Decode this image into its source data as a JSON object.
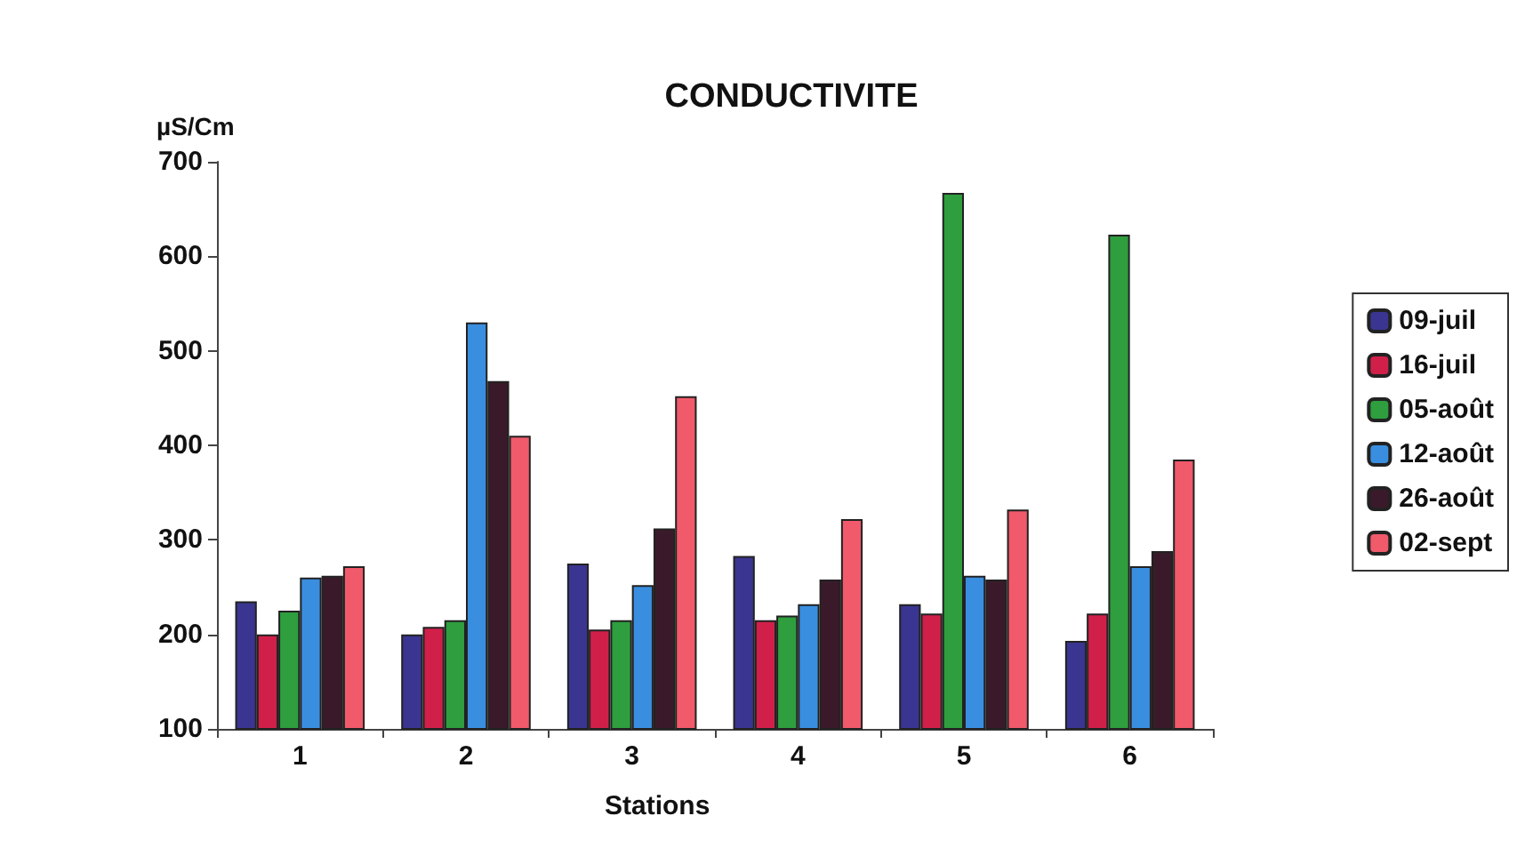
{
  "chart_data": {
    "type": "bar",
    "title": "CONDUCTIVITE",
    "ylabel": "µS/Cm",
    "xlabel": "Stations",
    "categories": [
      "1",
      "2",
      "3",
      "4",
      "5",
      "6"
    ],
    "series": [
      {
        "name": "09-juil",
        "color": "#3a3590",
        "values": [
          235,
          200,
          275,
          283,
          232,
          193
        ]
      },
      {
        "name": "16-juil",
        "color": "#d0204a",
        "values": [
          200,
          208,
          205,
          215,
          222,
          222
        ]
      },
      {
        "name": "05-août",
        "color": "#2e9e3e",
        "values": [
          225,
          215,
          215,
          220,
          667,
          623
        ]
      },
      {
        "name": "12-août",
        "color": "#3a8ee0",
        "values": [
          260,
          530,
          252,
          232,
          262,
          272
        ]
      },
      {
        "name": "26-août",
        "color": "#3a1a2a",
        "values": [
          262,
          468,
          312,
          258,
          258,
          288
        ]
      },
      {
        "name": "02-sept",
        "color": "#f05a6a",
        "values": [
          272,
          410,
          452,
          322,
          332,
          385
        ]
      }
    ],
    "ylim": [
      100,
      700
    ],
    "yticks": [
      100,
      200,
      300,
      400,
      500,
      600,
      700
    ],
    "grid": false,
    "legend": "right"
  }
}
